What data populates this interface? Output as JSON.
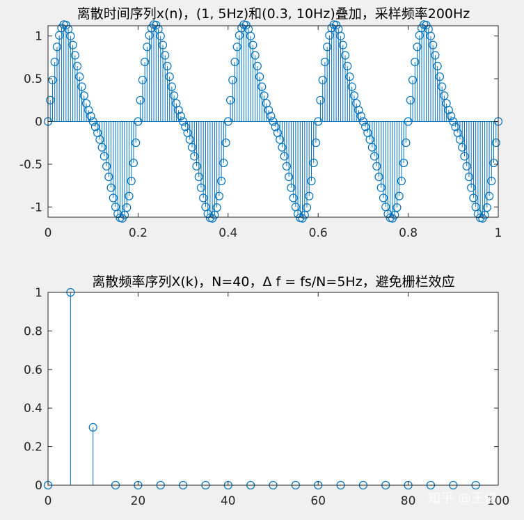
{
  "watermark": "知乎 @王俊",
  "colors": {
    "series": "#0072BD",
    "axes": "#262626",
    "background": "#f0f0f0",
    "plot_bg": "#ffffff"
  },
  "chart_data": [
    {
      "type": "stem",
      "title": "离散时间序列x(n)，(1, 5Hz)和(0.3, 10Hz)叠加，采样频率200Hz",
      "xlabel": "",
      "ylabel": "",
      "xlim": [
        0,
        1
      ],
      "ylim": [
        -1.12,
        1.12
      ],
      "x_ticks": [
        "0",
        "0.2",
        "0.4",
        "0.6",
        "0.8",
        "1"
      ],
      "y_ticks": [
        "-1",
        "-0.5",
        "0",
        "0.5",
        "1"
      ],
      "grid": false,
      "sample_rate_hz": 200,
      "series": [
        {
          "components": [
            {
              "amplitude": 1,
              "frequency_hz": 5
            },
            {
              "amplitude": 0.3,
              "frequency_hz": 10
            }
          ],
          "x_start": 0,
          "x_step": 0.005,
          "count": 201
        }
      ]
    },
    {
      "type": "stem",
      "title": "离散频率序列X(k)，N=40，Δ f = fs/N=5Hz，避免栅栏效应",
      "xlabel": "",
      "ylabel": "",
      "xlim": [
        0,
        100
      ],
      "ylim": [
        0,
        1
      ],
      "x_ticks": [
        "0",
        "20",
        "40",
        "60",
        "80",
        "100"
      ],
      "y_ticks": [
        "0",
        "0.2",
        "0.4",
        "0.6",
        "0.8",
        "1"
      ],
      "grid": false,
      "series": [
        {
          "x": [
            0,
            5,
            10,
            15,
            20,
            25,
            30,
            35,
            40,
            45,
            50,
            55,
            60,
            65,
            70,
            75,
            80,
            85,
            90,
            95
          ],
          "y": [
            0,
            1,
            0.3,
            0,
            0,
            0,
            0,
            0,
            0,
            0,
            0,
            0,
            0,
            0,
            0,
            0,
            0,
            0,
            0,
            0
          ]
        }
      ]
    }
  ]
}
